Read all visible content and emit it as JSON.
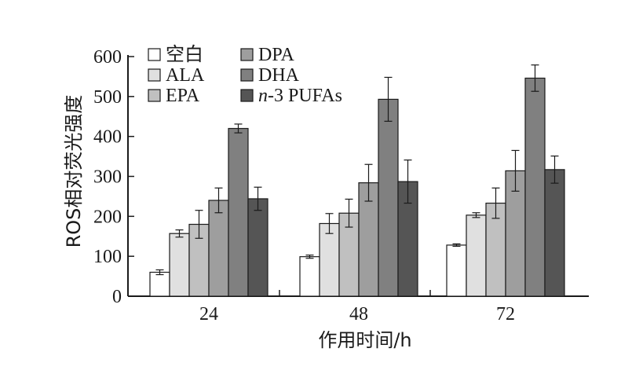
{
  "chart_data": {
    "type": "bar",
    "categories": [
      "24",
      "48",
      "72"
    ],
    "series": [
      {
        "name": "空白",
        "values": [
          60,
          99,
          128
        ],
        "errors": [
          6,
          4,
          3
        ],
        "color": "#ffffff"
      },
      {
        "name": "ALA",
        "values": [
          157,
          182,
          203
        ],
        "errors": [
          9,
          25,
          6
        ],
        "color": "#e0e0e0"
      },
      {
        "name": "EPA",
        "values": [
          180,
          208,
          233
        ],
        "errors": [
          35,
          35,
          38
        ],
        "color": "#c0c0c0"
      },
      {
        "name": "DPA",
        "values": [
          240,
          284,
          314
        ],
        "errors": [
          31,
          46,
          51
        ],
        "color": "#9e9e9e"
      },
      {
        "name": "DHA",
        "values": [
          420,
          493,
          546
        ],
        "errors": [
          11,
          55,
          33
        ],
        "color": "#808080"
      },
      {
        "name": "n-3 PUFAs",
        "name_italic": "n",
        "name_rest": "-3 PUFAs",
        "values": [
          244,
          287,
          317
        ],
        "errors": [
          29,
          54,
          34
        ],
        "color": "#555555"
      }
    ],
    "xlabel": "作用时间/h",
    "ylabel": "ROS相对荧光强度",
    "ylim": [
      0,
      600
    ],
    "yticks": [
      0,
      100,
      200,
      300,
      400,
      500,
      600
    ],
    "grid": false,
    "legend_position": "top-left"
  }
}
